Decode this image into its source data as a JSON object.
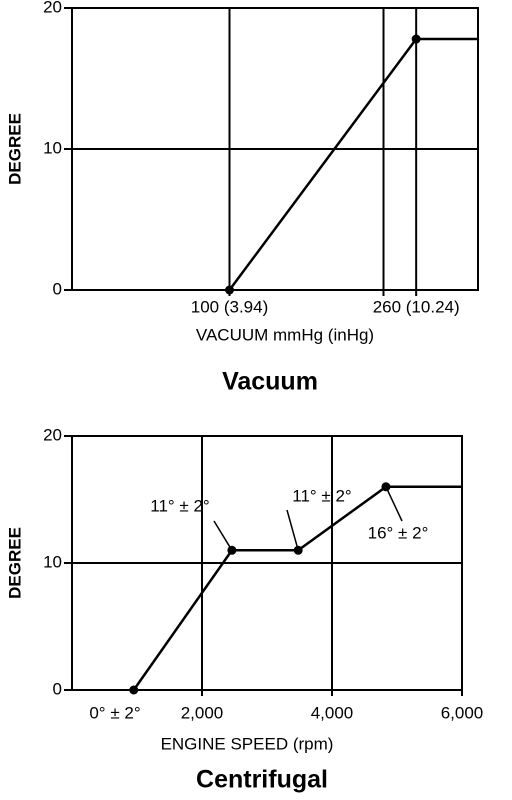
{
  "chart_data": [
    {
      "type": "line",
      "title": "Vacuum",
      "x_label": "VACUUM mmHg (inHg)",
      "y_label": "DEGREE",
      "x": [
        100,
        260,
        313
      ],
      "values": [
        0,
        17.8,
        17.8
      ],
      "color": "#000000",
      "xlim": [
        -35,
        313
      ],
      "ylim": [
        0,
        20
      ],
      "xticks": [
        {
          "value": 100,
          "label": "100 (3.94)"
        },
        {
          "value": 260,
          "label": "260 (10.24)"
        }
      ],
      "xgrid": [
        232
      ],
      "yticks": [
        0,
        10,
        20
      ],
      "grid": true
    },
    {
      "type": "line",
      "title": "Centrifugal",
      "x_label": "ENGINE SPEED (rpm)",
      "y_label": "DEGREE",
      "x": [
        950,
        2460,
        3480,
        4830,
        6000
      ],
      "values": [
        0,
        11,
        11,
        16,
        16
      ],
      "color": "#000000",
      "xlim": [
        0,
        6000
      ],
      "ylim": [
        0,
        20
      ],
      "xticks": [
        {
          "value": 2000,
          "label": "2,000"
        },
        {
          "value": 4000,
          "label": "4,000"
        },
        {
          "value": 6000,
          "label": "6,000"
        }
      ],
      "yticks": [
        0,
        10,
        20
      ],
      "grid": true,
      "annotations": [
        "0° ± 2°",
        "11° ± 2°",
        "11° ± 2°",
        "16° ± 2°"
      ]
    }
  ]
}
